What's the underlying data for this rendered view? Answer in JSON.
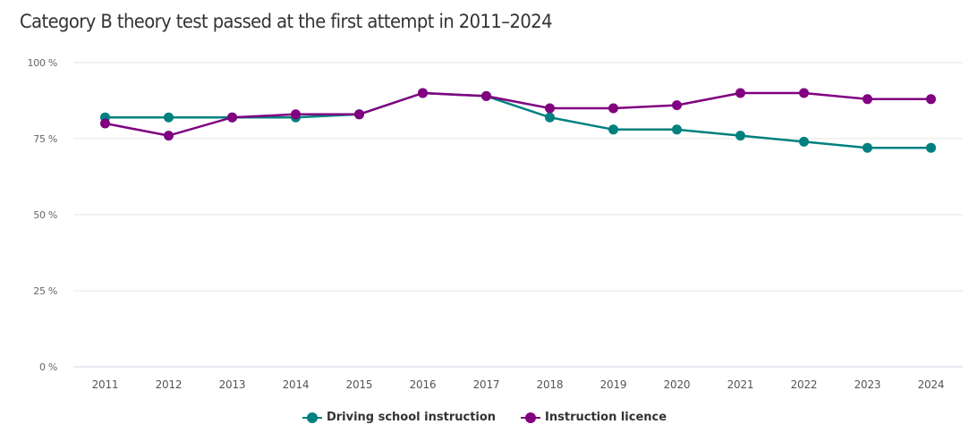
{
  "chart_data": {
    "type": "line",
    "title": "Category B theory test passed at the first attempt in 2011–2024",
    "xlabel": "",
    "ylabel": "",
    "categories": [
      "2011",
      "2012",
      "2013",
      "2014",
      "2015",
      "2016",
      "2017",
      "2018",
      "2019",
      "2020",
      "2021",
      "2022",
      "2023",
      "2024"
    ],
    "ylim": [
      0,
      100
    ],
    "yticks": [
      {
        "value": 0,
        "label": "0 %"
      },
      {
        "value": 25,
        "label": "25 %"
      },
      {
        "value": 50,
        "label": "50 %"
      },
      {
        "value": 75,
        "label": "75 %"
      },
      {
        "value": 100,
        "label": "100 %"
      }
    ],
    "grid": true,
    "legend_position": "bottom-center",
    "series": [
      {
        "name": "Driving school instruction",
        "color": "#008080",
        "values": [
          82,
          82,
          82,
          82,
          83,
          90,
          89,
          82,
          78,
          78,
          76,
          74,
          72,
          72
        ]
      },
      {
        "name": "Instruction licence",
        "color": "#800080",
        "values": [
          80,
          76,
          82,
          83,
          83,
          90,
          89,
          85,
          85,
          86,
          90,
          90,
          88,
          88
        ]
      }
    ]
  }
}
